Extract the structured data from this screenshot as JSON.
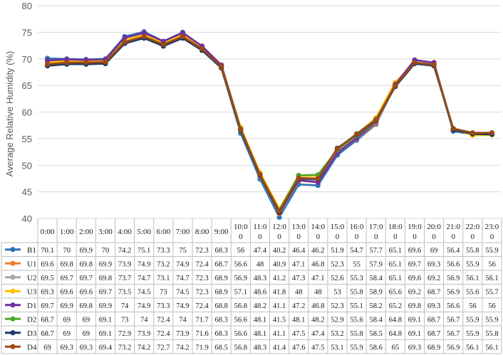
{
  "chart_data": {
    "type": "line",
    "title": "",
    "xlabel": "",
    "ylabel": "Average Relative Humidity (%)",
    "ylim": [
      40,
      80
    ],
    "yticks": [
      40,
      45,
      50,
      55,
      60,
      65,
      70,
      75,
      80
    ],
    "grid": true,
    "legend": "data-table-bottom",
    "categories": [
      "0:00",
      "1:00",
      "2:00",
      "3:00",
      "4:00",
      "5:00",
      "6:00",
      "7:00",
      "8:00",
      "9:00",
      "10:00",
      "11:00",
      "12:00",
      "13:00",
      "14:00",
      "15:00",
      "16:00",
      "17:00",
      "18:00",
      "19:00",
      "20:00",
      "21:00",
      "22:00",
      "23:00"
    ],
    "category_display": [
      [
        "0:00"
      ],
      [
        "1:00"
      ],
      [
        "2:00"
      ],
      [
        "3:00"
      ],
      [
        "4:00"
      ],
      [
        "5:00"
      ],
      [
        "6:00"
      ],
      [
        "7:00"
      ],
      [
        "8:00"
      ],
      [
        "9:00"
      ],
      [
        "10:0",
        "0"
      ],
      [
        "11:0",
        "0"
      ],
      [
        "12:0",
        "0"
      ],
      [
        "13:0",
        "0"
      ],
      [
        "14:0",
        "0"
      ],
      [
        "15:0",
        "0"
      ],
      [
        "16:0",
        "0"
      ],
      [
        "17:0",
        "0"
      ],
      [
        "18:0",
        "0"
      ],
      [
        "19:0",
        "0"
      ],
      [
        "20:0",
        "0"
      ],
      [
        "21:0",
        "0"
      ],
      [
        "22:0",
        "0"
      ],
      [
        "23:0",
        "0"
      ]
    ],
    "series": [
      {
        "name": "B1",
        "color": "#2e75b6",
        "values": [
          70.1,
          70,
          69.9,
          70,
          74.2,
          75.1,
          73.3,
          75,
          72.3,
          68.3,
          56,
          47.4,
          40.2,
          46.4,
          46.2,
          51.9,
          54.7,
          57.7,
          65.1,
          69.6,
          69,
          56.4,
          55.8,
          55.9
        ]
      },
      {
        "name": "U1",
        "color": "#ed7d31",
        "values": [
          69.6,
          69.8,
          69.8,
          69.9,
          73.9,
          74.9,
          73.2,
          74.9,
          72.4,
          68.7,
          56.6,
          48,
          40.9,
          47.1,
          46.8,
          52.3,
          55,
          57.9,
          65.1,
          69.7,
          69.3,
          56.6,
          55.9,
          56
        ]
      },
      {
        "name": "U2",
        "color": "#a5a5a5",
        "values": [
          69.5,
          69.7,
          69.7,
          69.8,
          73.7,
          74.7,
          73.1,
          74.7,
          72.3,
          68.9,
          56.9,
          48.3,
          41.2,
          47.3,
          47.1,
          52.6,
          55.3,
          58.4,
          65.1,
          69.6,
          69.2,
          56.9,
          56.1,
          56.1
        ]
      },
      {
        "name": "U3",
        "color": "#ffc000",
        "values": [
          69.3,
          69.6,
          69.6,
          69.7,
          73.5,
          74.5,
          73,
          74.5,
          72.3,
          68.9,
          57.1,
          48.6,
          41.8,
          48,
          48,
          53,
          55.8,
          58.9,
          65.6,
          69.2,
          68.7,
          56.9,
          55.6,
          55.7
        ]
      },
      {
        "name": "D1",
        "color": "#7030a0",
        "values": [
          69.7,
          69.9,
          69.8,
          69.9,
          74,
          74.9,
          73.3,
          74.9,
          72.4,
          68.8,
          56.8,
          48.2,
          41.1,
          47.2,
          46.8,
          52.3,
          55.1,
          58.2,
          65.2,
          69.8,
          69.3,
          56.6,
          56,
          56
        ]
      },
      {
        "name": "D2",
        "color": "#4ea72e",
        "values": [
          68.7,
          69,
          69,
          69.1,
          73,
          74,
          72.4,
          74,
          71.7,
          68.3,
          56.6,
          48.1,
          41.5,
          48.1,
          48.2,
          52.9,
          55.6,
          58.4,
          64.8,
          69.1,
          68.7,
          56.7,
          55.9,
          55.9
        ]
      },
      {
        "name": "D3",
        "color": "#1f3864",
        "values": [
          68.7,
          69,
          69,
          69.1,
          72.9,
          73.9,
          72.4,
          73.9,
          71.6,
          68.3,
          56.6,
          48.1,
          41.1,
          47.5,
          47.4,
          53.2,
          55.8,
          58.5,
          64.8,
          69.1,
          68.7,
          56.7,
          55.9,
          55.8
        ]
      },
      {
        "name": "D4",
        "color": "#9c4a12",
        "values": [
          69,
          69.3,
          69.3,
          69.4,
          73.2,
          74.2,
          72.7,
          74.2,
          71.9,
          68.5,
          56.8,
          48.3,
          41.4,
          47.6,
          47.5,
          53.1,
          55.9,
          58.6,
          65,
          69.3,
          68.9,
          56.9,
          56.1,
          56.1
        ]
      }
    ]
  }
}
